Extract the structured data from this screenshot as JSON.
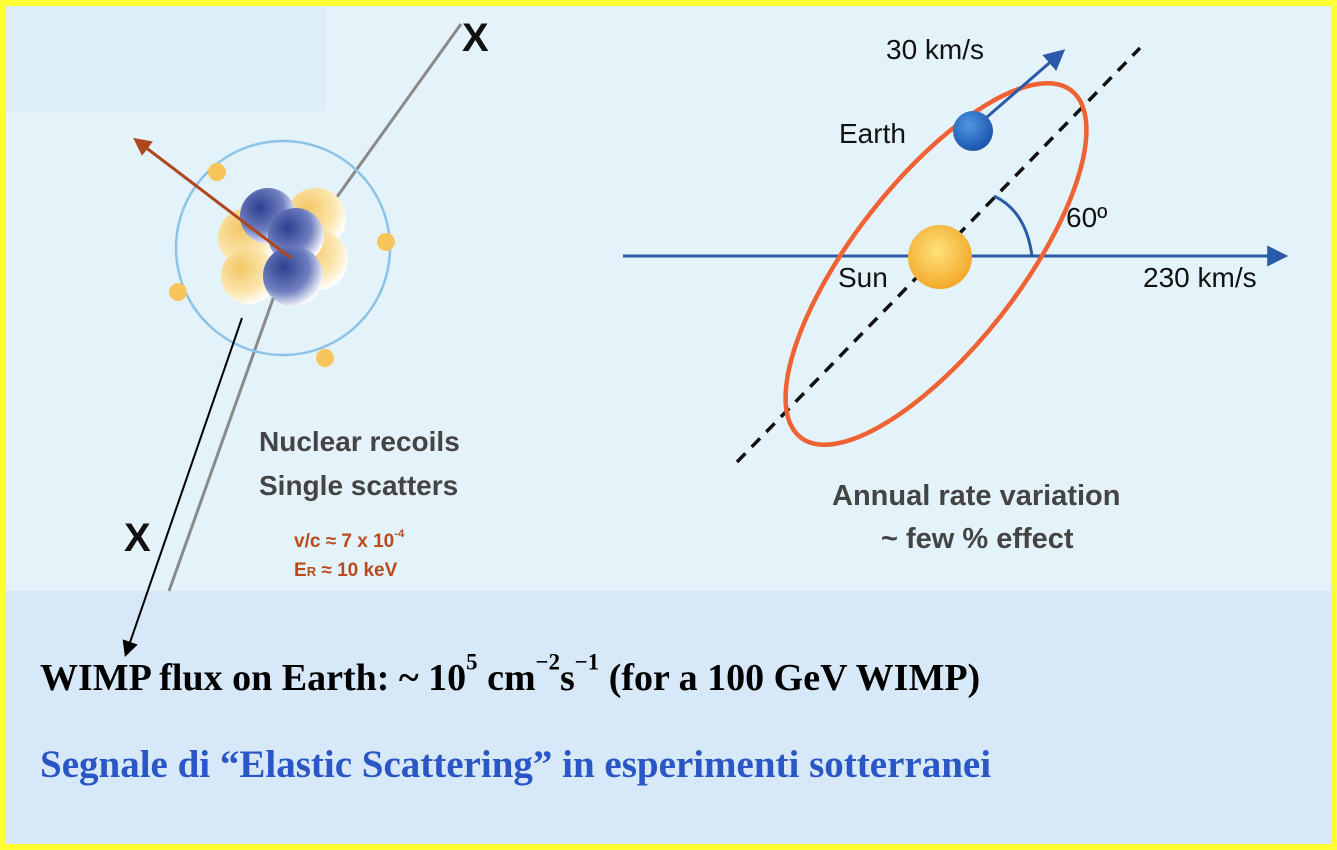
{
  "colors": {
    "frame": "#ffff33",
    "background": "#e4f2fa",
    "band": "#d7e8f8",
    "orbit": "#ee6233",
    "arrow_blue": "#2b5aa8",
    "recoil_arrow": "#b0461e",
    "earth": "#2c6fc4",
    "sun": "#f5b935",
    "text_gray": "#444444",
    "text_orange": "#b84a1c",
    "text_blue": "#2a56c6"
  },
  "left_diagram": {
    "x_top": "X",
    "x_bottom": "X",
    "title_line1": "Nuclear recoils",
    "title_line2": "Single scatters",
    "velocity": "v/c ≈ 7 x 10",
    "velocity_exp": "-4",
    "energy_sym": "E",
    "energy_sub": "R",
    "energy_val": " ≈ 10 keV"
  },
  "right_diagram": {
    "earth_speed": "30 km/s",
    "earth_label": "Earth",
    "angle_label": "60º",
    "sun_label": "Sun",
    "sun_speed": "230 km/s",
    "caption_line1": "Annual rate variation",
    "caption_line2": "~  few % effect"
  },
  "bottom": {
    "flux_prefix": "WIMP flux on Earth: ~ 10",
    "flux_exp": "5",
    "flux_unit": " cm",
    "flux_unit_exp": "−2",
    "flux_s": "s",
    "flux_s_exp": "−1",
    "flux_suffix": " (for a 100 GeV WIMP)",
    "subtitle": "Segnale di “Elastic Scattering”  in esperimenti sotterranei"
  }
}
